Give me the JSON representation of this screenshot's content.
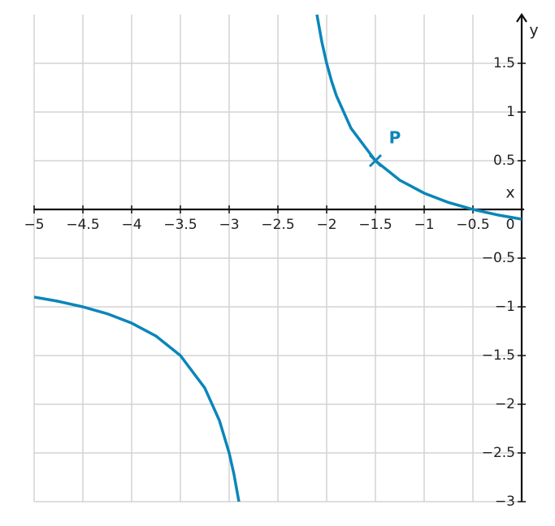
{
  "chart_data": {
    "type": "line",
    "xlim": [
      -5,
      0
    ],
    "ylim": [
      -3,
      2
    ],
    "xticks": [
      {
        "value": -5,
        "label": "−5"
      },
      {
        "value": -4.5,
        "label": "−4.5"
      },
      {
        "value": -4,
        "label": "−4"
      },
      {
        "value": -3.5,
        "label": "−3.5"
      },
      {
        "value": -3,
        "label": "−3"
      },
      {
        "value": -2.5,
        "label": "−2.5"
      },
      {
        "value": -2,
        "label": "−2"
      },
      {
        "value": -1.5,
        "label": "−1.5"
      },
      {
        "value": -1,
        "label": "−1"
      },
      {
        "value": -0.5,
        "label": "−0.5"
      },
      0
    ],
    "yticks": [
      {
        "value": -3,
        "label": "−3"
      },
      {
        "value": -2.5,
        "label": "−2.5"
      },
      {
        "value": -2,
        "label": "−2"
      },
      {
        "value": -1.5,
        "label": "−1.5"
      },
      {
        "value": -1,
        "label": "−1"
      },
      {
        "value": -0.5,
        "label": "−0.5"
      },
      0.5,
      1,
      1.5
    ],
    "grid": true,
    "x_label": "x",
    "y_label": "y",
    "x": [
      -5,
      -4.75,
      -4.5,
      -4.25,
      -4,
      -3.75,
      -3.5,
      -3.25,
      -3.1,
      -3,
      -2.95,
      -2.9,
      -2.5,
      -2.1,
      -2.05,
      -2,
      -1.95,
      -1.9,
      -1.75,
      -1.5,
      -1.25,
      -1,
      -0.75,
      -0.5,
      -0.25,
      0
    ],
    "series": [
      {
        "color": "#0a86b9",
        "values": [
          -0.9,
          -0.944,
          -1,
          -1.071,
          -1.167,
          -1.3,
          -1.5,
          -1.833,
          -2.167,
          -2.5,
          -2.722,
          -3,
          null,
          2,
          1.722,
          1.5,
          1.318,
          1.167,
          0.833,
          0.5,
          0.3,
          0.167,
          0.071,
          0,
          -0.056,
          -0.1
        ]
      }
    ],
    "points": [
      {
        "label": "P",
        "x": -1.5,
        "y": 0.5,
        "color": "#0a86b9"
      }
    ]
  }
}
